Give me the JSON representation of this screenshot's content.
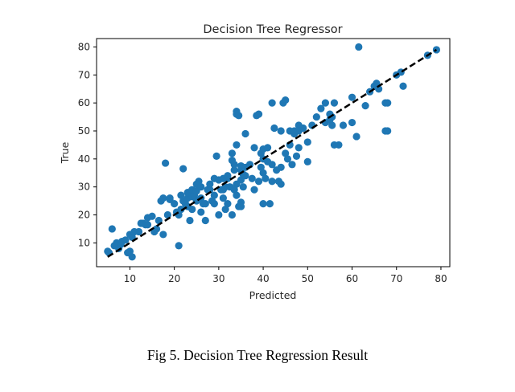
{
  "caption": "Fig 5. Decision Tree Regression Result",
  "chart_data": {
    "type": "scatter",
    "title": "Decision Tree Regressor",
    "xlabel": "Predicted",
    "ylabel": "True",
    "xlim": [
      2.5,
      82
    ],
    "ylim": [
      1.5,
      83
    ],
    "xticks": [
      10,
      20,
      30,
      40,
      50,
      60,
      70,
      80
    ],
    "yticks": [
      10,
      20,
      30,
      40,
      50,
      60,
      70,
      80
    ],
    "grid": false,
    "marker_color": "#1f77b4",
    "reference_line": {
      "style": "dashed",
      "color": "#000000",
      "from": [
        5,
        5
      ],
      "to": [
        79,
        79
      ]
    },
    "points": [
      [
        5,
        7
      ],
      [
        5.3,
        6.5
      ],
      [
        6,
        15
      ],
      [
        6.5,
        9
      ],
      [
        7,
        10
      ],
      [
        7.5,
        8
      ],
      [
        8,
        9.5
      ],
      [
        8.2,
        10.5
      ],
      [
        9,
        11
      ],
      [
        9.5,
        6.5
      ],
      [
        10,
        7
      ],
      [
        10.5,
        5
      ],
      [
        10,
        13
      ],
      [
        10.5,
        12
      ],
      [
        11,
        14
      ],
      [
        12,
        14
      ],
      [
        12.5,
        17
      ],
      [
        13,
        17
      ],
      [
        13.5,
        16.5
      ],
      [
        14,
        16.5
      ],
      [
        14,
        19
      ],
      [
        15,
        19.5
      ],
      [
        15.5,
        14
      ],
      [
        16,
        15
      ],
      [
        16.5,
        18
      ],
      [
        17,
        25
      ],
      [
        17.5,
        26
      ],
      [
        18,
        38.5
      ],
      [
        17.5,
        13
      ],
      [
        18.5,
        20
      ],
      [
        19,
        25.5
      ],
      [
        19,
        26
      ],
      [
        20,
        24
      ],
      [
        20.5,
        21
      ],
      [
        21,
        20
      ],
      [
        21,
        9
      ],
      [
        21.5,
        22
      ],
      [
        21.5,
        27
      ],
      [
        22,
        25
      ],
      [
        22,
        36.5
      ],
      [
        22.5,
        24
      ],
      [
        23,
        26
      ],
      [
        23,
        23
      ],
      [
        23,
        28
      ],
      [
        23.5,
        18
      ],
      [
        24,
        26.5
      ],
      [
        24,
        22
      ],
      [
        24,
        29
      ],
      [
        24.5,
        27
      ],
      [
        25,
        31
      ],
      [
        25,
        28.5
      ],
      [
        25,
        25
      ],
      [
        25.5,
        32
      ],
      [
        26,
        30
      ],
      [
        26,
        26
      ],
      [
        26.5,
        24
      ],
      [
        26,
        21
      ],
      [
        27,
        24
      ],
      [
        27,
        18
      ],
      [
        27.5,
        29
      ],
      [
        28,
        29
      ],
      [
        28,
        31
      ],
      [
        28.5,
        25
      ],
      [
        29,
        27
      ],
      [
        29,
        24
      ],
      [
        29,
        33
      ],
      [
        29.5,
        41
      ],
      [
        30,
        32.5
      ],
      [
        30,
        20
      ],
      [
        30.5,
        29
      ],
      [
        31,
        26
      ],
      [
        31,
        33
      ],
      [
        31,
        29
      ],
      [
        31.5,
        30
      ],
      [
        31.5,
        22
      ],
      [
        32,
        24
      ],
      [
        32,
        33
      ],
      [
        32,
        34
      ],
      [
        32.5,
        30
      ],
      [
        33,
        39.5
      ],
      [
        33,
        42
      ],
      [
        33,
        20
      ],
      [
        33.5,
        36
      ],
      [
        33.5,
        29
      ],
      [
        33.5,
        38
      ],
      [
        34,
        27
      ],
      [
        34,
        31
      ],
      [
        34,
        45
      ],
      [
        34,
        57
      ],
      [
        34,
        56
      ],
      [
        34.5,
        55.5
      ],
      [
        34.5,
        23
      ],
      [
        35,
        23
      ],
      [
        35,
        24.5
      ],
      [
        35,
        32.5
      ],
      [
        35,
        36
      ],
      [
        35,
        37.5
      ],
      [
        35.5,
        34.5
      ],
      [
        35.5,
        30
      ],
      [
        36,
        49
      ],
      [
        36,
        34
      ],
      [
        36,
        37
      ],
      [
        37,
        38
      ],
      [
        37.5,
        33
      ],
      [
        38,
        44
      ],
      [
        38,
        29
      ],
      [
        38.5,
        55.5
      ],
      [
        39,
        56
      ],
      [
        39,
        32
      ],
      [
        39.5,
        42
      ],
      [
        39.5,
        37
      ],
      [
        40,
        24
      ],
      [
        40,
        40
      ],
      [
        40,
        43.5
      ],
      [
        40,
        35
      ],
      [
        40.5,
        33
      ],
      [
        41,
        44
      ],
      [
        41,
        39
      ],
      [
        41.5,
        24
      ],
      [
        42,
        60
      ],
      [
        42,
        38
      ],
      [
        42,
        32
      ],
      [
        42.5,
        51
      ],
      [
        43,
        36
      ],
      [
        43.5,
        32
      ],
      [
        44,
        50
      ],
      [
        44,
        37
      ],
      [
        44,
        31
      ],
      [
        44.5,
        60
      ],
      [
        45,
        61
      ],
      [
        45,
        42
      ],
      [
        45.5,
        40
      ],
      [
        46,
        50
      ],
      [
        46,
        45
      ],
      [
        46.5,
        38
      ],
      [
        47,
        49
      ],
      [
        47,
        50
      ],
      [
        47.5,
        41
      ],
      [
        48,
        52
      ],
      [
        48,
        50
      ],
      [
        48,
        44
      ],
      [
        49,
        51
      ],
      [
        50,
        39
      ],
      [
        50,
        46
      ],
      [
        51,
        52
      ],
      [
        52,
        55
      ],
      [
        53,
        58
      ],
      [
        54,
        60
      ],
      [
        54,
        53
      ],
      [
        55,
        56
      ],
      [
        55,
        54
      ],
      [
        55.5,
        55
      ],
      [
        55.5,
        52
      ],
      [
        56,
        45
      ],
      [
        56,
        60
      ],
      [
        57,
        45
      ],
      [
        58,
        52
      ],
      [
        60,
        62
      ],
      [
        60,
        53
      ],
      [
        61,
        48
      ],
      [
        61.5,
        80
      ],
      [
        63,
        59
      ],
      [
        64,
        64
      ],
      [
        65,
        66
      ],
      [
        65.5,
        67
      ],
      [
        66,
        65
      ],
      [
        68,
        60
      ],
      [
        68,
        50
      ],
      [
        67.5,
        60
      ],
      [
        67.5,
        50
      ],
      [
        70,
        70
      ],
      [
        71,
        71
      ],
      [
        71.5,
        66
      ],
      [
        77,
        77
      ],
      [
        79,
        79
      ]
    ]
  }
}
